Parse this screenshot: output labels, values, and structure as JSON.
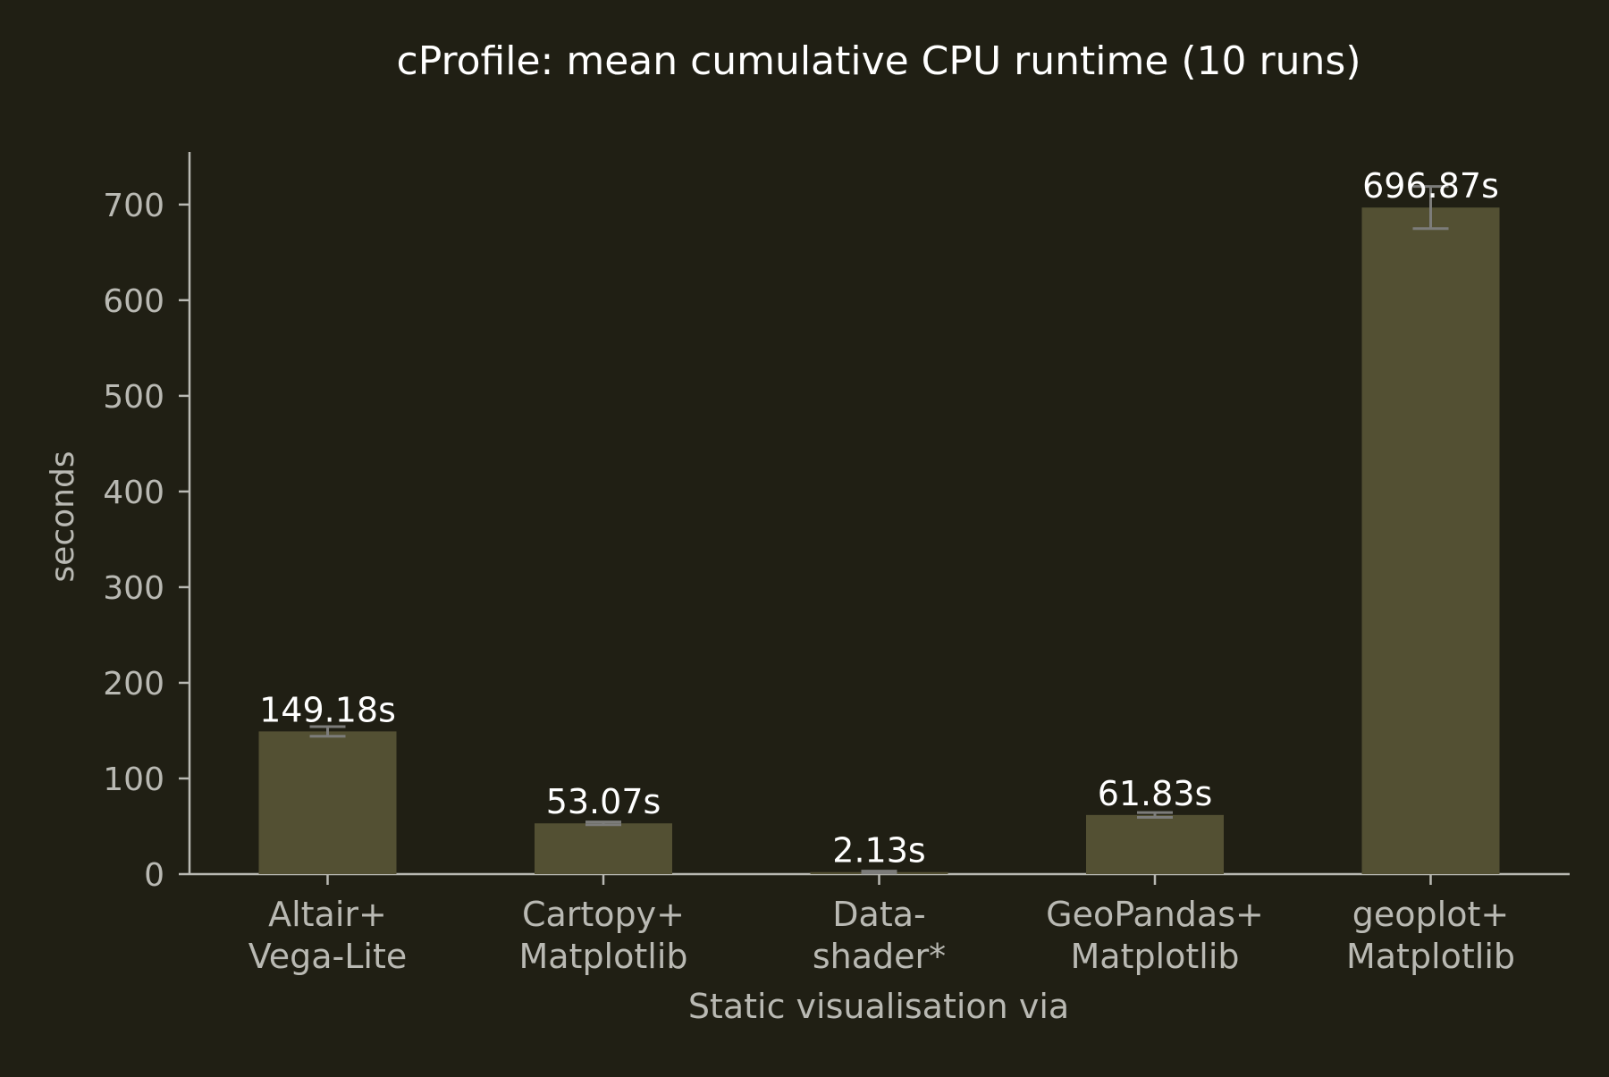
{
  "chart_data": {
    "type": "bar",
    "title": "cProfile: mean cumulative CPU runtime (10 runs)",
    "xlabel": "Static visualisation via",
    "ylabel": "seconds",
    "ylim": [
      0,
      755
    ],
    "yticks": [
      0,
      100,
      200,
      300,
      400,
      500,
      600,
      700
    ],
    "grid": false,
    "categories": [
      [
        "Altair+",
        "Vega-Lite"
      ],
      [
        "Cartopy+",
        "Matplotlib"
      ],
      [
        "Data-",
        "shader*"
      ],
      [
        "GeoPandas+",
        "Matplotlib"
      ],
      [
        "geoplot+",
        "Matplotlib"
      ]
    ],
    "values": [
      149.18,
      53.07,
      2.13,
      61.83,
      696.87
    ],
    "errors": [
      5,
      1.5,
      1,
      2.5,
      22
    ],
    "data_labels": [
      "149.18s",
      "53.07s",
      "2.13s",
      "61.83s",
      "696.87s"
    ],
    "colors": {
      "background": "#201f14",
      "bar": "#535033",
      "axis": "#b9b9b3",
      "tick_text": "#b9b9b3",
      "label_text": "#ffffff",
      "error_bar": "#7c7c7a"
    }
  }
}
